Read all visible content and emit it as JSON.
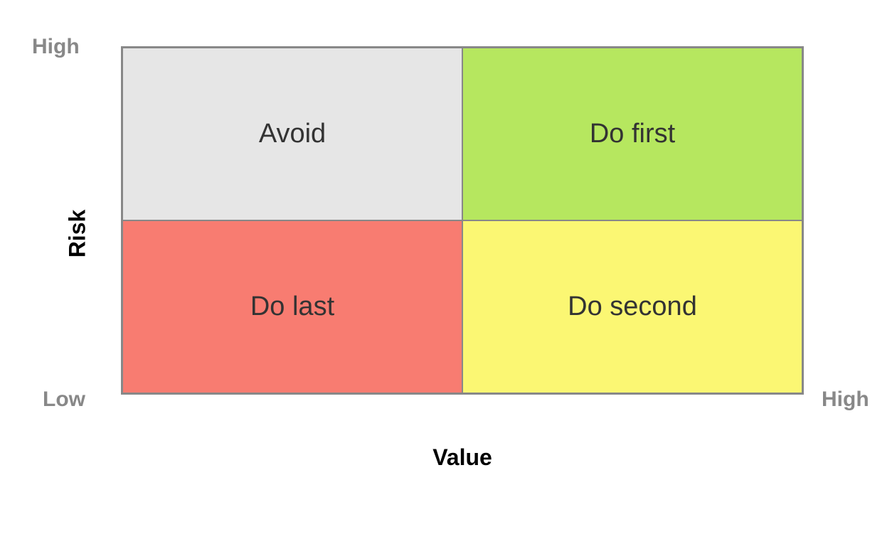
{
  "matrix": {
    "type": "quadrant-matrix",
    "y_axis_label": "Risk",
    "x_axis_label": "Value",
    "scale_high": "High",
    "scale_low": "Low",
    "border_color": "#888888",
    "border_width": 2,
    "inner_border_color": "#888888",
    "background_color": "#ffffff",
    "axis_label_fontsize": 32,
    "axis_label_weight": 700,
    "axis_label_color": "#000000",
    "scale_label_fontsize": 30,
    "scale_label_weight": 600,
    "scale_label_color": "#888888",
    "quadrant_label_fontsize": 38,
    "quadrant_label_weight": 400,
    "quadrant_label_color": "#333333",
    "quadrants": {
      "top_left": {
        "label": "Avoid",
        "fill_color": "#e6e6e6"
      },
      "top_right": {
        "label": "Do first",
        "fill_color": "#b6e75f"
      },
      "bottom_left": {
        "label": "Do last",
        "fill_color": "#f87c71"
      },
      "bottom_right": {
        "label": "Do second",
        "fill_color": "#fbf773"
      }
    }
  }
}
